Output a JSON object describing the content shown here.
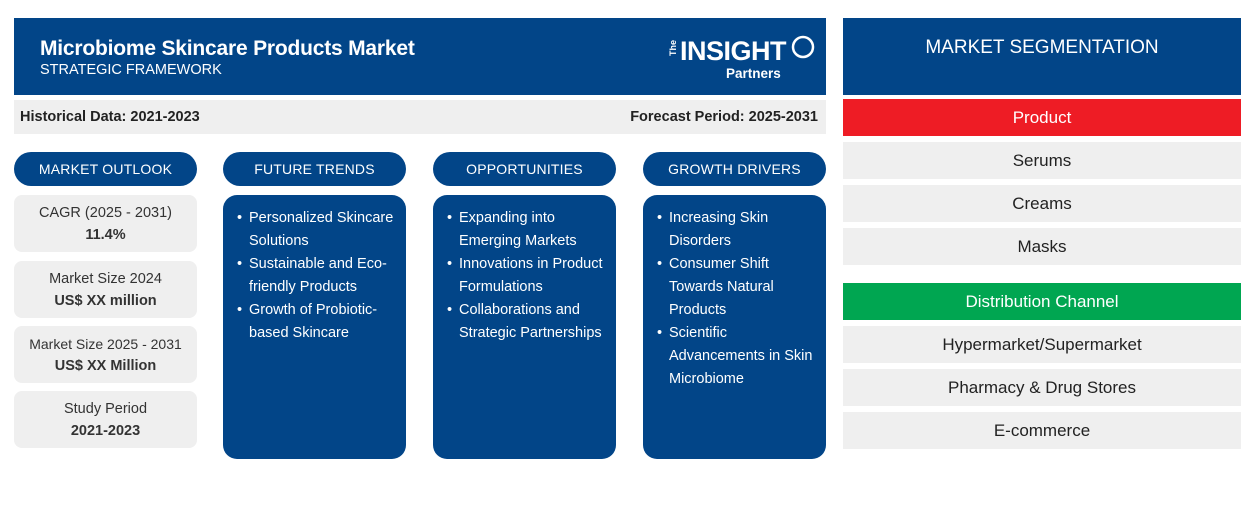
{
  "header": {
    "title": "Microbiome Skincare Products Market",
    "subtitle": "STRATEGIC FRAMEWORK",
    "logo": {
      "the": "The",
      "insight": "INSIGHT",
      "partners": "Partners"
    }
  },
  "infobar": {
    "historical": "Historical Data: 2021-2023",
    "forecast": "Forecast Period: 2025-2031"
  },
  "columns": [
    {
      "title": "MARKET OUTLOOK"
    },
    {
      "title": "FUTURE TRENDS",
      "items": [
        "Personalized Skincare Solutions",
        "Sustainable and Eco-friendly Products",
        "Growth of Probiotic-based Skincare"
      ]
    },
    {
      "title": "OPPORTUNITIES",
      "items": [
        "Expanding into Emerging Markets",
        "Innovations in Product Formulations",
        "Collaborations and Strategic Partnerships"
      ]
    },
    {
      "title": "GROWTH DRIVERS",
      "items": [
        "Increasing Skin Disorders",
        "Consumer Shift Towards Natural Products",
        "Scientific Advancements in Skin Microbiome"
      ]
    }
  ],
  "outlook": [
    {
      "label": "CAGR (2025 - 2031)",
      "value": "11.4%"
    },
    {
      "label": "Market Size 2024",
      "value": "US$ XX million"
    },
    {
      "label": "Market Size 2025 - 2031",
      "value": "US$ XX Million"
    },
    {
      "label": "Study Period",
      "value": "2021-2023"
    }
  ],
  "segmentation": {
    "title": "MARKET SEGMENTATION",
    "categories": [
      {
        "name": "Product",
        "color": "#ee1c25",
        "items": [
          "Serums",
          "Creams",
          "Masks"
        ]
      },
      {
        "name": "Distribution Channel",
        "color": "#00a651",
        "items": [
          "Hypermarket/Supermarket",
          "Pharmacy & Drug Stores",
          "E-commerce"
        ]
      }
    ]
  },
  "colors": {
    "primary": "#024588",
    "panel_bg": "#efefef"
  }
}
